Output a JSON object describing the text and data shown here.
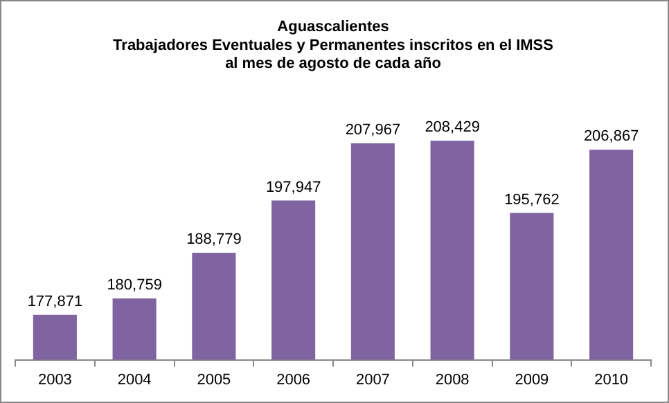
{
  "chart_data": {
    "type": "bar",
    "title": "Aguascalientes\nTrabajadores Eventuales y Permanentes inscritos en el IMSS\nal mes de agosto de cada año",
    "categories": [
      "2003",
      "2004",
      "2005",
      "2006",
      "2007",
      "2008",
      "2009",
      "2010"
    ],
    "values": [
      177871,
      180759,
      188779,
      197947,
      207967,
      208429,
      195762,
      206867
    ],
    "value_labels": [
      "177,871",
      "180,759",
      "188,779",
      "197,947",
      "207,967",
      "208,429",
      "195,762",
      "206,867"
    ],
    "color": "#8064a2",
    "tick_labels": "x",
    "grid": false,
    "legend": false
  }
}
